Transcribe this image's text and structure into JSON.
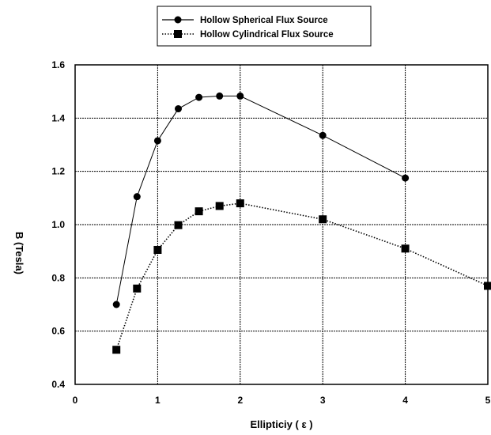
{
  "chart_data": {
    "type": "line",
    "xlabel": "Ellipticiy (  ε )",
    "ylabel": "B (Tesla)",
    "xlim": [
      0,
      5
    ],
    "ylim": [
      0.4,
      1.6
    ],
    "xticks": [
      "0",
      "1",
      "2",
      "3",
      "4",
      "5"
    ],
    "yticks": [
      "0.4",
      "0.6",
      "0.8",
      "1.0",
      "1.2",
      "1.4",
      "1.6"
    ],
    "grid": true,
    "legend_position": "top-center",
    "series": [
      {
        "name": "Hollow Spherical Flux Source",
        "marker": "circle",
        "line_style": "solid",
        "color": "#000000",
        "x": [
          0.5,
          0.75,
          1.0,
          1.25,
          1.5,
          1.75,
          2.0,
          3.0,
          4.0
        ],
        "y": [
          0.7,
          1.105,
          1.315,
          1.435,
          1.478,
          1.483,
          1.483,
          1.335,
          1.175
        ]
      },
      {
        "name": "Hollow Cylindrical Flux Source",
        "marker": "square",
        "line_style": "dotted",
        "color": "#000000",
        "x": [
          0.5,
          0.75,
          1.0,
          1.25,
          1.5,
          1.75,
          2.0,
          3.0,
          4.0,
          5.0
        ],
        "y": [
          0.53,
          0.76,
          0.905,
          0.998,
          1.05,
          1.07,
          1.08,
          1.02,
          0.91,
          0.77
        ]
      }
    ]
  }
}
